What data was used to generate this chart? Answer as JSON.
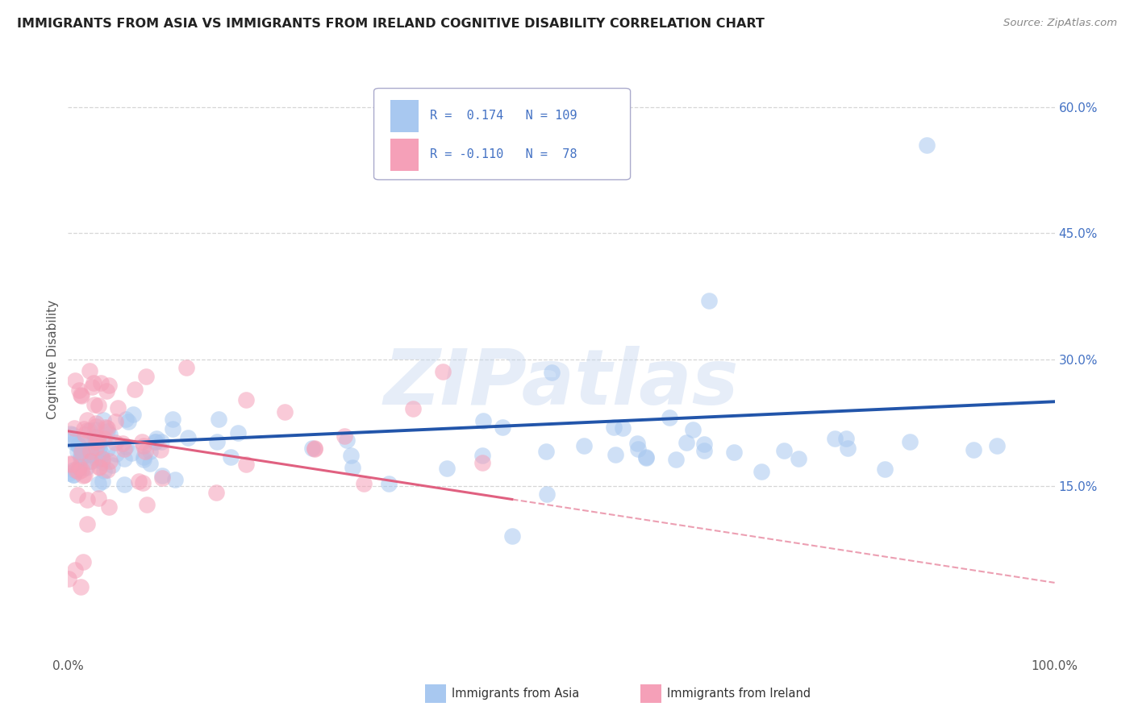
{
  "title": "IMMIGRANTS FROM ASIA VS IMMIGRANTS FROM IRELAND COGNITIVE DISABILITY CORRELATION CHART",
  "source": "Source: ZipAtlas.com",
  "ylabel": "Cognitive Disability",
  "xlim": [
    0.0,
    1.0
  ],
  "ylim": [
    -0.05,
    0.65
  ],
  "x_tick_labels": [
    "0.0%",
    "100.0%"
  ],
  "y_ticks": [
    0.15,
    0.3,
    0.45,
    0.6
  ],
  "y_tick_labels": [
    "15.0%",
    "30.0%",
    "45.0%",
    "60.0%"
  ],
  "asia_color": "#a8c8f0",
  "ireland_color": "#f5a0b8",
  "asia_line_color": "#2255aa",
  "ireland_line_color": "#e06080",
  "R_asia": 0.174,
  "N_asia": 109,
  "R_ireland": -0.11,
  "N_ireland": 78,
  "legend_label_asia": "Immigrants from Asia",
  "legend_label_ireland": "Immigrants from Ireland",
  "watermark": "ZIPatlas",
  "grid_color": "#cccccc",
  "background_color": "#ffffff",
  "text_color": "#4472c4",
  "title_color": "#222222"
}
